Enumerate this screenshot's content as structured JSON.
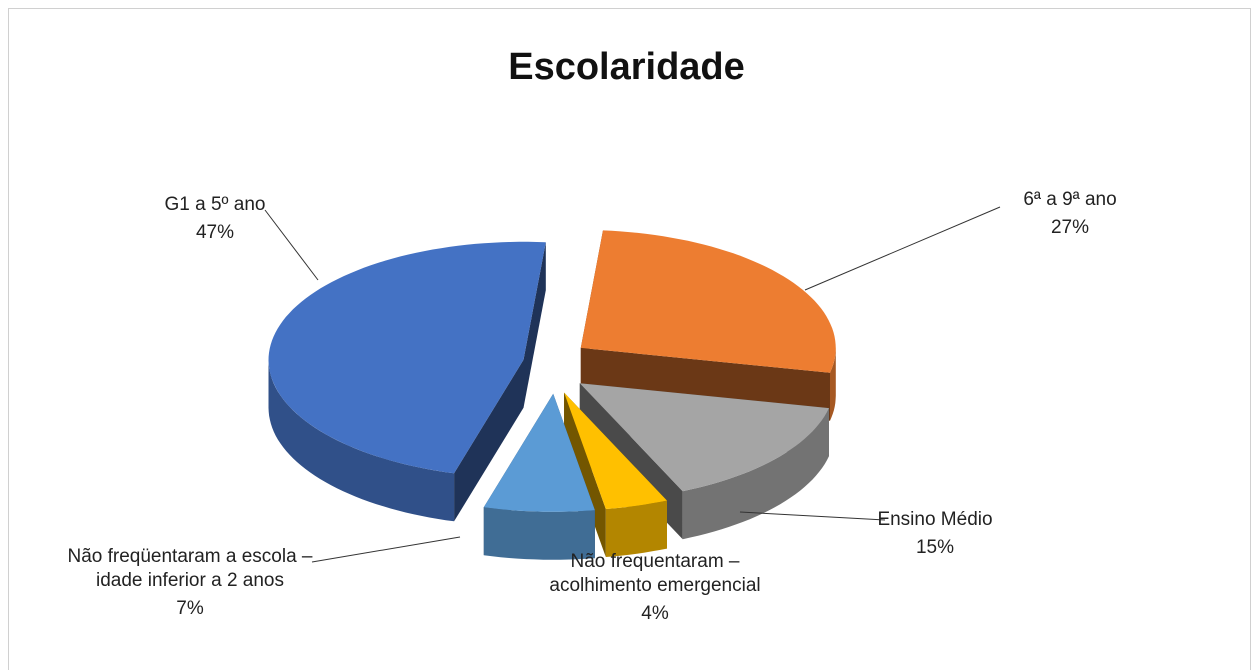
{
  "chart_data": {
    "type": "pie3d",
    "title": "Escolaridade",
    "categories": [
      "6ª a 9ª ano",
      "Ensino Médio",
      "Não frequentaram – acolhimento emergencial",
      "Não freqüentaram a escola – idade inferior a 2 anos",
      "G1 a 5º ano"
    ],
    "values": [
      27,
      15,
      4,
      7,
      47
    ],
    "value_labels": [
      "27%",
      "15%",
      "4%",
      "7%",
      "47%"
    ],
    "colors": [
      "#ED7D31",
      "#A5A5A5",
      "#FFC000",
      "#5B9BD5",
      "#4472C4"
    ]
  }
}
